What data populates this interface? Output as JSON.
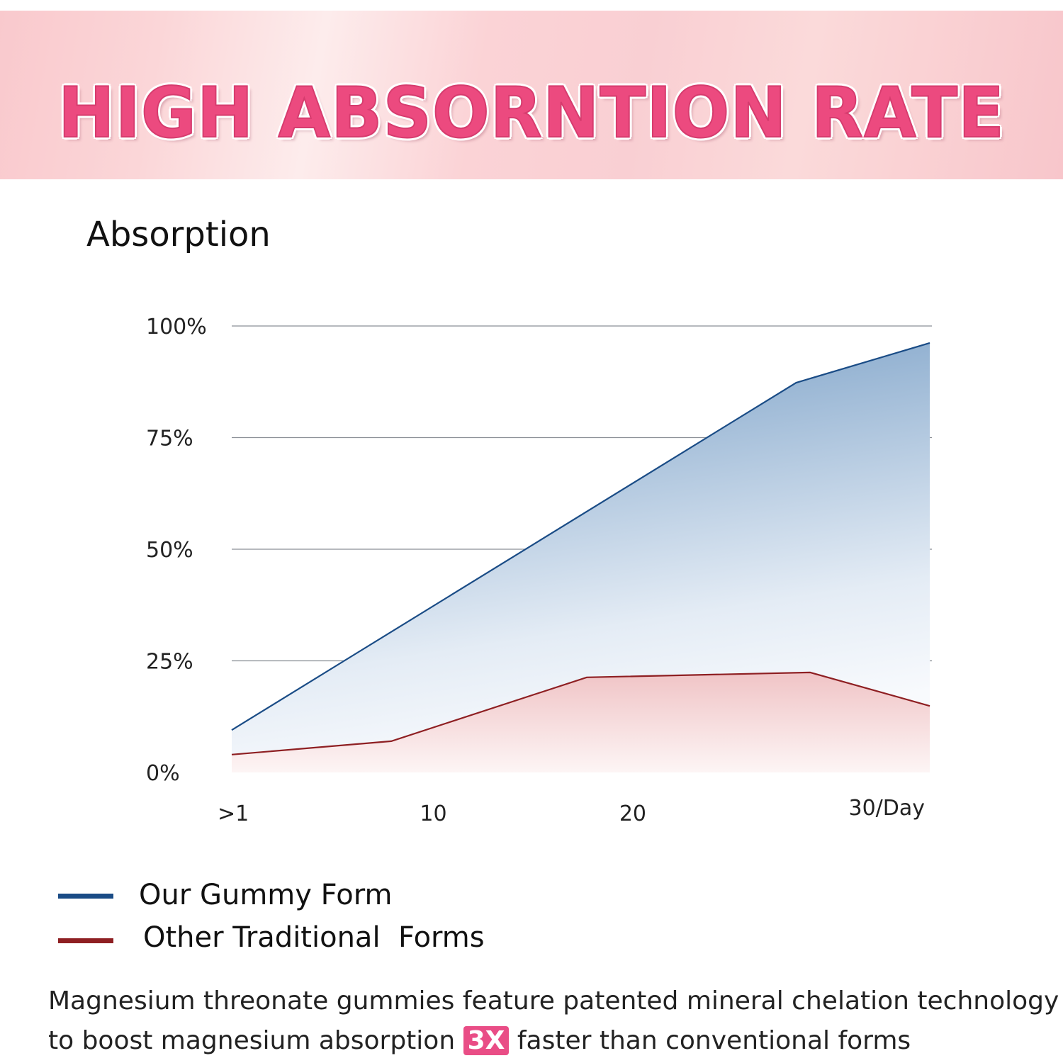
{
  "header": {
    "title": "HIGH ABSORNTION RATE"
  },
  "caption": {
    "line1": "Magnesium threonate gummies feature patented mineral chelation technology",
    "line2_before": "to boost magnesium absorption ",
    "highlight": "3X",
    "line2_after": " faster than conventional forms",
    "highlight_color": "#e94d86"
  },
  "chart_data": {
    "type": "area",
    "title": "",
    "ylabel": "Absorption",
    "xlabel": "",
    "ylim": [
      0,
      100
    ],
    "xlim": [
      0,
      35
    ],
    "grid": true,
    "yticks": [
      {
        "value": 0,
        "label": "0%"
      },
      {
        "value": 25,
        "label": "25%"
      },
      {
        "value": 50,
        "label": "50%"
      },
      {
        "value": 75,
        "label": "75%"
      },
      {
        "value": 100,
        "label": "100%"
      }
    ],
    "xticks": [
      {
        "value": 0,
        "label": ">1"
      },
      {
        "value": 10,
        "label": "10"
      },
      {
        "value": 20,
        "label": "20"
      },
      {
        "value": 31.5,
        "label": "30/Day"
      }
    ],
    "legend_placement": "bottom-left",
    "series": [
      {
        "name": "Our Gummy Form",
        "color": "#1a4c86",
        "x": [
          0,
          28.3,
          35
        ],
        "values": [
          9.5,
          87.3,
          96.2
        ]
      },
      {
        "name": "Other Traditional  Forms",
        "color": "#8e1f22",
        "x": [
          0,
          8,
          17.8,
          29,
          35
        ],
        "values": [
          4,
          7,
          21.3,
          22.4,
          14.9
        ]
      }
    ]
  }
}
